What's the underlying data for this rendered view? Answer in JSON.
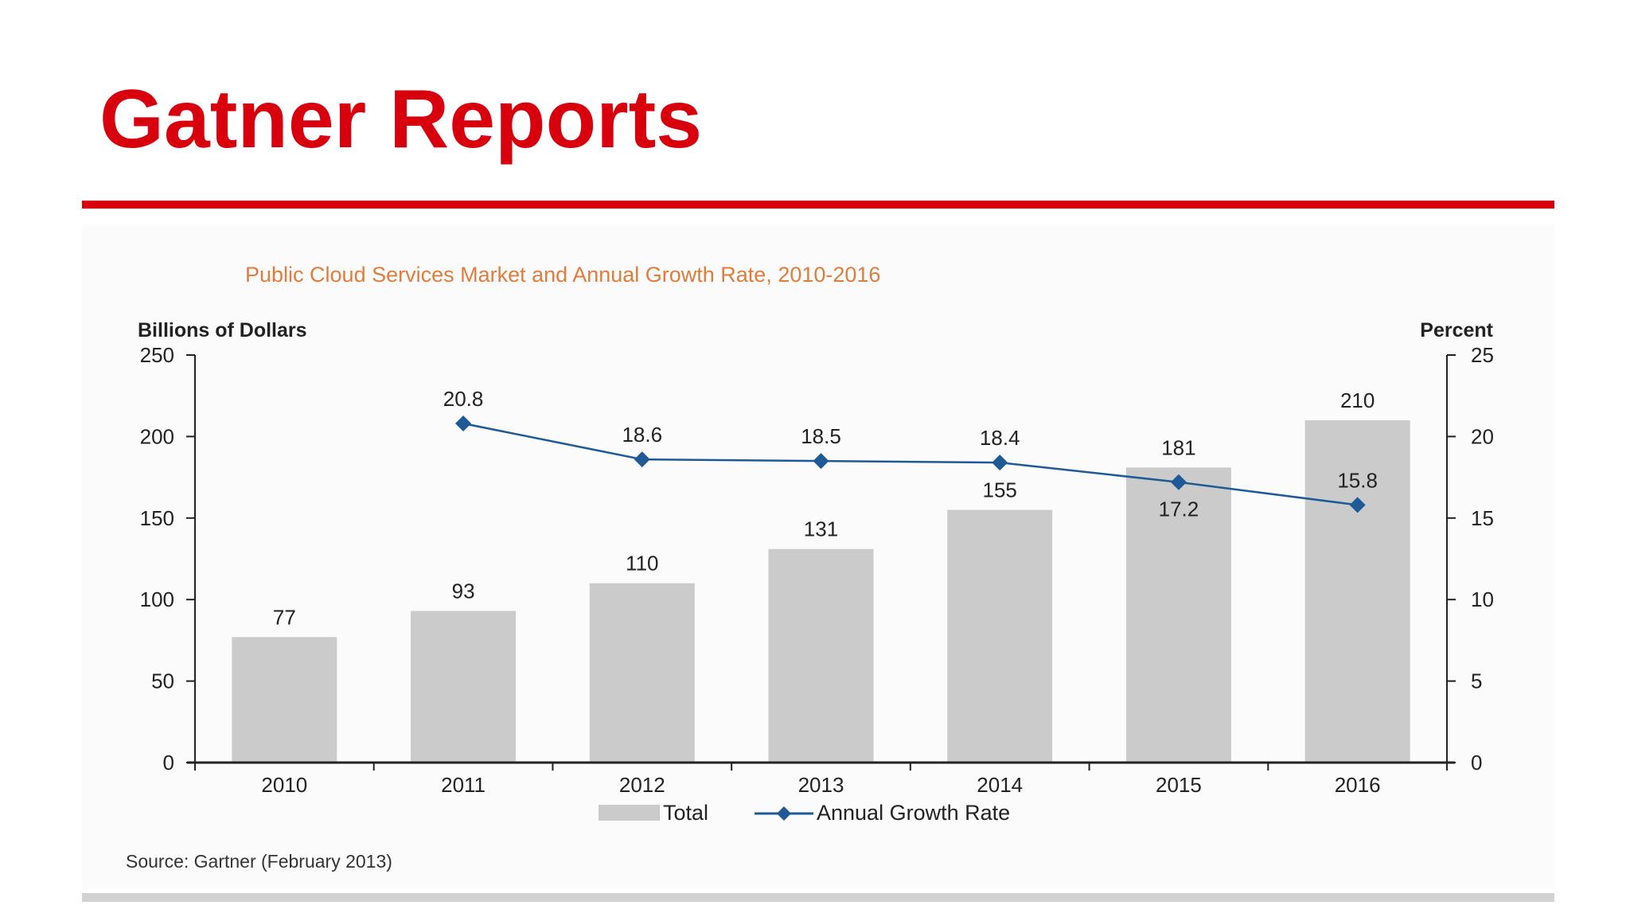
{
  "slide": {
    "title": "Gatner Reports",
    "title_color": "#d9000d",
    "rule_color": "#d9000d",
    "footer_rule_color": "#d2d2d2"
  },
  "chart_data": {
    "type": "bar",
    "title": "Public Cloud Services Market and Annual Growth Rate, 2010-2016",
    "title_color": "#e07d3c",
    "categories": [
      "2010",
      "2011",
      "2012",
      "2013",
      "2014",
      "2015",
      "2016"
    ],
    "y_left": {
      "label": "Billions of Dollars",
      "ylim": [
        0,
        250
      ],
      "ticks": [
        0,
        50,
        100,
        150,
        200,
        250
      ]
    },
    "y_right": {
      "label": "Percent",
      "ylim": [
        0,
        25
      ],
      "ticks": [
        0,
        5,
        10,
        15,
        20,
        25
      ]
    },
    "series": [
      {
        "name": "Total",
        "type": "bar",
        "axis": "left",
        "color": "#cbcbcb",
        "values": [
          77,
          93,
          110,
          131,
          155,
          181,
          210
        ]
      },
      {
        "name": "Annual Growth Rate",
        "type": "line",
        "axis": "right",
        "color": "#1e5a96",
        "values": [
          null,
          20.8,
          18.6,
          18.5,
          18.4,
          17.2,
          15.8
        ]
      }
    ],
    "grid": false,
    "legend": "bottom-center",
    "source": "Source: Gartner (February 2013)"
  }
}
